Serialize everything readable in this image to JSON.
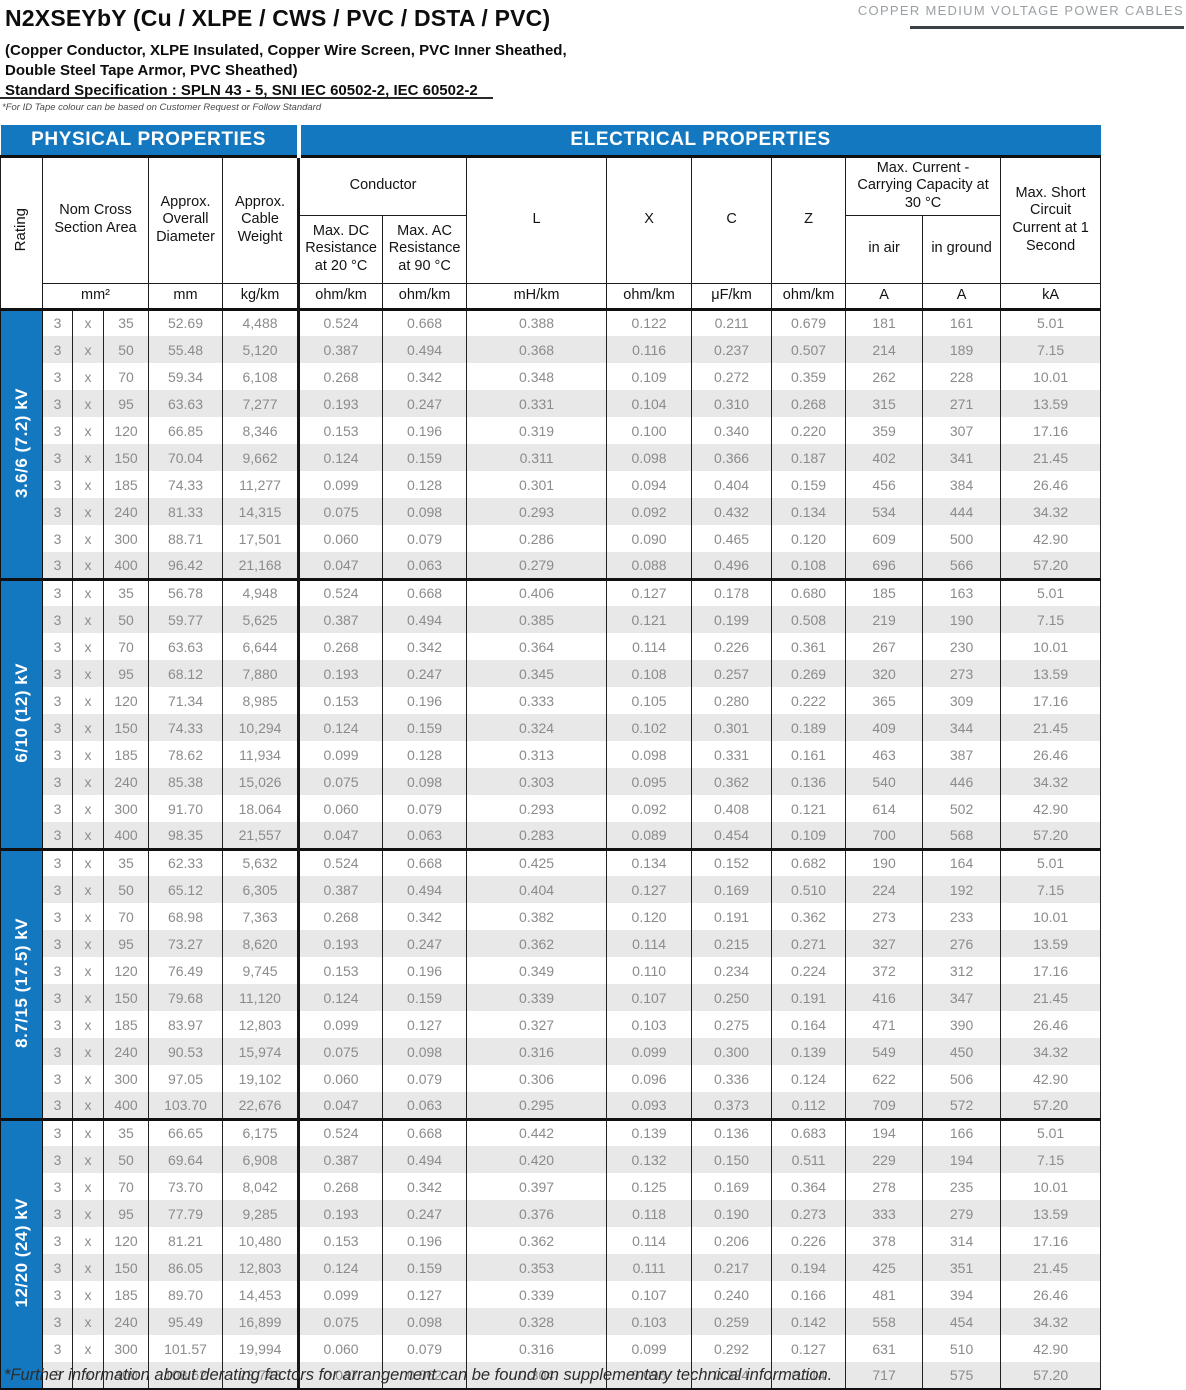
{
  "header": {
    "title": "N2XSEYbY (Cu / XLPE / CWS / PVC / DSTA / PVC)",
    "subtitle_line1": "(Copper Conductor, XLPE Insulated, Copper Wire Screen, PVC Inner Sheathed,",
    "subtitle_line2": "Double Steel Tape Armor, PVC Sheathed)",
    "subtitle_line3": "Standard Specification : SPLN 43 - 5, SNI IEC 60502-2, IEC 60502-2",
    "category_label": "COPPER MEDIUM VOLTAGE POWER CABLES",
    "id_tape_note": "*For ID Tape colour can be based on Customer Request or Follow Standard"
  },
  "footer_note": "*Further information about derating factors for arrangement can be found on supplementary technical information.",
  "colors": {
    "accent_blue": "#1478c0",
    "stripe_gray": "#e8e8e8",
    "data_text_gray": "#8b8b8b",
    "banner_text": "#ffffff"
  },
  "table": {
    "section_headers": {
      "physical": "PHYSICAL PROPERTIES",
      "electrical": "ELECTRICAL PROPERTIES"
    },
    "columns": {
      "rating": "Rating",
      "nom_cross_section": "Nom Cross Section Area",
      "overall_diameter": "Approx. Overall Diameter",
      "cable_weight": "Approx. Cable Weight",
      "conductor": "Conductor",
      "dc_resistance": "Max. DC Resistance at 20 °C",
      "ac_resistance": "Max. AC Resistance at 90 °C",
      "l": "L",
      "x": "X",
      "c": "C",
      "z": "Z",
      "current_capacity": "Max. Current - Carrying Capacity at 30 °C",
      "in_air": "in air",
      "in_ground": "in ground",
      "short_circuit": "Max. Short Circuit Current at 1 Second"
    },
    "units": [
      "mm²",
      "mm",
      "kg/km",
      "ohm/km",
      "ohm/km",
      "mH/km",
      "ohm/km",
      "μF/km",
      "ohm/km",
      "A",
      "A",
      "kA"
    ],
    "groups": [
      {
        "rating": "3.6/6 (7.2) kV",
        "rows": [
          [
            "3",
            "x",
            "35",
            "52.69",
            "4,488",
            "0.524",
            "0.668",
            "0.388",
            "0.122",
            "0.211",
            "0.679",
            "181",
            "161",
            "5.01"
          ],
          [
            "3",
            "x",
            "50",
            "55.48",
            "5,120",
            "0.387",
            "0.494",
            "0.368",
            "0.116",
            "0.237",
            "0.507",
            "214",
            "189",
            "7.15"
          ],
          [
            "3",
            "x",
            "70",
            "59.34",
            "6,108",
            "0.268",
            "0.342",
            "0.348",
            "0.109",
            "0.272",
            "0.359",
            "262",
            "228",
            "10.01"
          ],
          [
            "3",
            "x",
            "95",
            "63.63",
            "7,277",
            "0.193",
            "0.247",
            "0.331",
            "0.104",
            "0.310",
            "0.268",
            "315",
            "271",
            "13.59"
          ],
          [
            "3",
            "x",
            "120",
            "66.85",
            "8,346",
            "0.153",
            "0.196",
            "0.319",
            "0.100",
            "0.340",
            "0.220",
            "359",
            "307",
            "17.16"
          ],
          [
            "3",
            "x",
            "150",
            "70.04",
            "9,662",
            "0.124",
            "0.159",
            "0.311",
            "0.098",
            "0.366",
            "0.187",
            "402",
            "341",
            "21.45"
          ],
          [
            "3",
            "x",
            "185",
            "74.33",
            "11,277",
            "0.099",
            "0.128",
            "0.301",
            "0.094",
            "0.404",
            "0.159",
            "456",
            "384",
            "26.46"
          ],
          [
            "3",
            "x",
            "240",
            "81.33",
            "14,315",
            "0.075",
            "0.098",
            "0.293",
            "0.092",
            "0.432",
            "0.134",
            "534",
            "444",
            "34.32"
          ],
          [
            "3",
            "x",
            "300",
            "88.71",
            "17,501",
            "0.060",
            "0.079",
            "0.286",
            "0.090",
            "0.465",
            "0.120",
            "609",
            "500",
            "42.90"
          ],
          [
            "3",
            "x",
            "400",
            "96.42",
            "21,168",
            "0.047",
            "0.063",
            "0.279",
            "0.088",
            "0.496",
            "0.108",
            "696",
            "566",
            "57.20"
          ]
        ]
      },
      {
        "rating": "6/10 (12) kV",
        "rows": [
          [
            "3",
            "x",
            "35",
            "56.78",
            "4,948",
            "0.524",
            "0.668",
            "0.406",
            "0.127",
            "0.178",
            "0.680",
            "185",
            "163",
            "5.01"
          ],
          [
            "3",
            "x",
            "50",
            "59.77",
            "5,625",
            "0.387",
            "0.494",
            "0.385",
            "0.121",
            "0.199",
            "0.508",
            "219",
            "190",
            "7.15"
          ],
          [
            "3",
            "x",
            "70",
            "63.63",
            "6,644",
            "0.268",
            "0.342",
            "0.364",
            "0.114",
            "0.226",
            "0.361",
            "267",
            "230",
            "10.01"
          ],
          [
            "3",
            "x",
            "95",
            "68.12",
            "7,880",
            "0.193",
            "0.247",
            "0.345",
            "0.108",
            "0.257",
            "0.269",
            "320",
            "273",
            "13.59"
          ],
          [
            "3",
            "x",
            "120",
            "71.34",
            "8,985",
            "0.153",
            "0.196",
            "0.333",
            "0.105",
            "0.280",
            "0.222",
            "365",
            "309",
            "17.16"
          ],
          [
            "3",
            "x",
            "150",
            "74.33",
            "10,294",
            "0.124",
            "0.159",
            "0.324",
            "0.102",
            "0.301",
            "0.189",
            "409",
            "344",
            "21.45"
          ],
          [
            "3",
            "x",
            "185",
            "78.62",
            "11,934",
            "0.099",
            "0.128",
            "0.313",
            "0.098",
            "0.331",
            "0.161",
            "463",
            "387",
            "26.46"
          ],
          [
            "3",
            "x",
            "240",
            "85.38",
            "15,026",
            "0.075",
            "0.098",
            "0.303",
            "0.095",
            "0.362",
            "0.136",
            "540",
            "446",
            "34.32"
          ],
          [
            "3",
            "x",
            "300",
            "91.70",
            "18.064",
            "0.060",
            "0.079",
            "0.293",
            "0.092",
            "0.408",
            "0.121",
            "614",
            "502",
            "42.90"
          ],
          [
            "3",
            "x",
            "400",
            "98.35",
            "21,557",
            "0.047",
            "0.063",
            "0.283",
            "0.089",
            "0.454",
            "0.109",
            "700",
            "568",
            "57.20"
          ]
        ]
      },
      {
        "rating": "8.7/15 (17.5) kV",
        "rows": [
          [
            "3",
            "x",
            "35",
            "62.33",
            "5,632",
            "0.524",
            "0.668",
            "0.425",
            "0.134",
            "0.152",
            "0.682",
            "190",
            "164",
            "5.01"
          ],
          [
            "3",
            "x",
            "50",
            "65.12",
            "6,305",
            "0.387",
            "0.494",
            "0.404",
            "0.127",
            "0.169",
            "0.510",
            "224",
            "192",
            "7.15"
          ],
          [
            "3",
            "x",
            "70",
            "68.98",
            "7,363",
            "0.268",
            "0.342",
            "0.382",
            "0.120",
            "0.191",
            "0.362",
            "273",
            "233",
            "10.01"
          ],
          [
            "3",
            "x",
            "95",
            "73.27",
            "8,620",
            "0.193",
            "0.247",
            "0.362",
            "0.114",
            "0.215",
            "0.271",
            "327",
            "276",
            "13.59"
          ],
          [
            "3",
            "x",
            "120",
            "76.49",
            "9,745",
            "0.153",
            "0.196",
            "0.349",
            "0.110",
            "0.234",
            "0.224",
            "372",
            "312",
            "17.16"
          ],
          [
            "3",
            "x",
            "150",
            "79.68",
            "11,120",
            "0.124",
            "0.159",
            "0.339",
            "0.107",
            "0.250",
            "0.191",
            "416",
            "347",
            "21.45"
          ],
          [
            "3",
            "x",
            "185",
            "83.97",
            "12,803",
            "0.099",
            "0.127",
            "0.327",
            "0.103",
            "0.275",
            "0.164",
            "471",
            "390",
            "26.46"
          ],
          [
            "3",
            "x",
            "240",
            "90.53",
            "15,974",
            "0.075",
            "0.098",
            "0.316",
            "0.099",
            "0.300",
            "0.139",
            "549",
            "450",
            "34.32"
          ],
          [
            "3",
            "x",
            "300",
            "97.05",
            "19,102",
            "0.060",
            "0.079",
            "0.306",
            "0.096",
            "0.336",
            "0.124",
            "622",
            "506",
            "42.90"
          ],
          [
            "3",
            "x",
            "400",
            "103.70",
            "22,676",
            "0.047",
            "0.063",
            "0.295",
            "0.093",
            "0.373",
            "0.112",
            "709",
            "572",
            "57.20"
          ]
        ]
      },
      {
        "rating": "12/20 (24) kV",
        "rows": [
          [
            "3",
            "x",
            "35",
            "66.65",
            "6,175",
            "0.524",
            "0.668",
            "0.442",
            "0.139",
            "0.136",
            "0.683",
            "194",
            "166",
            "5.01"
          ],
          [
            "3",
            "x",
            "50",
            "69.64",
            "6,908",
            "0.387",
            "0.494",
            "0.420",
            "0.132",
            "0.150",
            "0.511",
            "229",
            "194",
            "7.15"
          ],
          [
            "3",
            "x",
            "70",
            "73.70",
            "8,042",
            "0.268",
            "0.342",
            "0.397",
            "0.125",
            "0.169",
            "0.364",
            "278",
            "235",
            "10.01"
          ],
          [
            "3",
            "x",
            "95",
            "77.79",
            "9,285",
            "0.193",
            "0.247",
            "0.376",
            "0.118",
            "0.190",
            "0.273",
            "333",
            "279",
            "13.59"
          ],
          [
            "3",
            "x",
            "120",
            "81.21",
            "10,480",
            "0.153",
            "0.196",
            "0.362",
            "0.114",
            "0.206",
            "0.226",
            "378",
            "314",
            "17.16"
          ],
          [
            "3",
            "x",
            "150",
            "86.05",
            "12,803",
            "0.124",
            "0.159",
            "0.353",
            "0.111",
            "0.217",
            "0.194",
            "425",
            "351",
            "21.45"
          ],
          [
            "3",
            "x",
            "185",
            "89.70",
            "14,453",
            "0.099",
            "0.127",
            "0.339",
            "0.107",
            "0.240",
            "0.166",
            "481",
            "394",
            "26.46"
          ],
          [
            "3",
            "x",
            "240",
            "95.49",
            "16,899",
            "0.075",
            "0.098",
            "0.328",
            "0.103",
            "0.259",
            "0.142",
            "558",
            "454",
            "34.32"
          ],
          [
            "3",
            "x",
            "300",
            "101.57",
            "19,994",
            "0.060",
            "0.079",
            "0.316",
            "0.099",
            "0.292",
            "0.127",
            "631",
            "510",
            "42.90"
          ],
          [
            "3",
            "x",
            "400",
            "108.62",
            "23,743",
            "0.047",
            "0.062",
            "0.304",
            "0.096",
            "0.324",
            "0.114",
            "717",
            "575",
            "57.20"
          ]
        ]
      }
    ]
  }
}
